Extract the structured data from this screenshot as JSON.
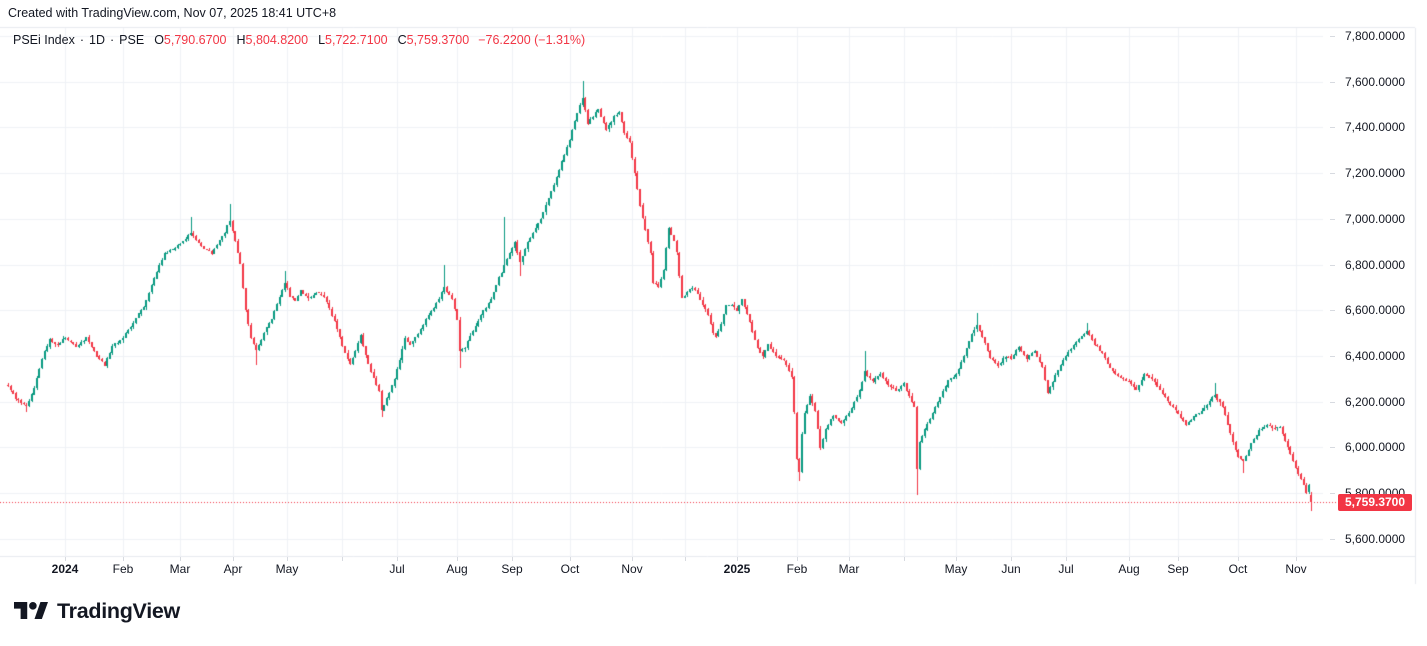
{
  "header": {
    "credit": "Created with TradingView.com, Nov 07, 2025 18:41 UTC+8"
  },
  "legend": {
    "symbol": "PSEi Index",
    "separator": "·",
    "timeframe": "1D",
    "exchange": "PSE",
    "ohlc": [
      {
        "k": "O",
        "v": "5,790.6700"
      },
      {
        "k": "H",
        "v": "5,804.8200"
      },
      {
        "k": "L",
        "v": "5,722.7100"
      },
      {
        "k": "C",
        "v": "5,759.3700"
      }
    ],
    "change": "−76.2200 (−1.31%)"
  },
  "price_axis": {
    "range": [
      5525,
      7835
    ],
    "labels": [
      {
        "value": 7800,
        "text": "7,800.0000"
      },
      {
        "value": 7600,
        "text": "7,600.0000"
      },
      {
        "value": 7400,
        "text": "7,400.0000"
      },
      {
        "value": 7200,
        "text": "7,200.0000"
      },
      {
        "value": 7000,
        "text": "7,000.0000"
      },
      {
        "value": 6800,
        "text": "6,800.0000"
      },
      {
        "value": 6600,
        "text": "6,600.0000"
      },
      {
        "value": 6400,
        "text": "6,400.0000"
      },
      {
        "value": 6200,
        "text": "6,200.0000"
      },
      {
        "value": 6000,
        "text": "6,000.0000"
      },
      {
        "value": 5800,
        "text": "5,800.0000"
      },
      {
        "value": 5600,
        "text": "5,600.0000"
      }
    ]
  },
  "price_line": {
    "value": 5759.37,
    "label": "5,759.3700"
  },
  "time_axis": {
    "ticks": [
      {
        "label": "2024",
        "i": 22,
        "bold": true
      },
      {
        "label": "Feb",
        "i": 44
      },
      {
        "label": "Mar",
        "i": 66
      },
      {
        "label": "Apr",
        "i": 86
      },
      {
        "label": "May",
        "i": 107
      },
      {
        "label": "",
        "i": 128
      },
      {
        "label": "Jul",
        "i": 149
      },
      {
        "label": "Aug",
        "i": 172
      },
      {
        "label": "Sep",
        "i": 193
      },
      {
        "label": "Oct",
        "i": 215
      },
      {
        "label": "Nov",
        "i": 239
      },
      {
        "label": "",
        "i": 259
      },
      {
        "label": "2025",
        "i": 279,
        "bold": true
      },
      {
        "label": "Feb",
        "i": 302
      },
      {
        "label": "Mar",
        "i": 322
      },
      {
        "label": "",
        "i": 343
      },
      {
        "label": "May",
        "i": 363
      },
      {
        "label": "Jun",
        "i": 384
      },
      {
        "label": "Jul",
        "i": 405
      },
      {
        "label": "Aug",
        "i": 429
      },
      {
        "label": "Sep",
        "i": 448
      },
      {
        "label": "Oct",
        "i": 471
      },
      {
        "label": "Nov",
        "i": 493
      }
    ]
  },
  "chart_data": {
    "type": "candlestick",
    "title": "PSEi Index · 1D · PSE",
    "interval": "1D",
    "count": 500,
    "date_range": "Dec 2023 – Nov 07, 2025",
    "ylim": [
      5525,
      7835
    ],
    "grid": true,
    "last_candle": {
      "open": 5790.67,
      "high": 5804.82,
      "low": 5722.71,
      "close": 5759.37
    },
    "prev_close": 5835.59,
    "change": -76.22,
    "change_pct": -1.31,
    "anchors": [
      [
        0,
        6270
      ],
      [
        3,
        6215
      ],
      [
        7,
        6180
      ],
      [
        10,
        6260
      ],
      [
        13,
        6390
      ],
      [
        16,
        6470
      ],
      [
        19,
        6450
      ],
      [
        22,
        6480
      ],
      [
        26,
        6440
      ],
      [
        30,
        6480
      ],
      [
        34,
        6400
      ],
      [
        37,
        6360
      ],
      [
        40,
        6440
      ],
      [
        44,
        6480
      ],
      [
        48,
        6550
      ],
      [
        52,
        6620
      ],
      [
        56,
        6740
      ],
      [
        60,
        6850
      ],
      [
        66,
        6890
      ],
      [
        70,
        6940
      ],
      [
        74,
        6880
      ],
      [
        78,
        6850
      ],
      [
        82,
        6920
      ],
      [
        85,
        6990
      ],
      [
        87,
        6900
      ],
      [
        89,
        6800
      ],
      [
        91,
        6600
      ],
      [
        93,
        6480
      ],
      [
        95,
        6420
      ],
      [
        98,
        6500
      ],
      [
        101,
        6560
      ],
      [
        104,
        6660
      ],
      [
        106,
        6720
      ],
      [
        108,
        6660
      ],
      [
        110,
        6640
      ],
      [
        112,
        6690
      ],
      [
        115,
        6650
      ],
      [
        118,
        6680
      ],
      [
        121,
        6660
      ],
      [
        124,
        6580
      ],
      [
        126,
        6520
      ],
      [
        128,
        6440
      ],
      [
        131,
        6360
      ],
      [
        133,
        6420
      ],
      [
        135,
        6490
      ],
      [
        137,
        6400
      ],
      [
        140,
        6300
      ],
      [
        142,
        6250
      ],
      [
        143,
        6160
      ],
      [
        144,
        6190
      ],
      [
        146,
        6240
      ],
      [
        148,
        6300
      ],
      [
        150,
        6380
      ],
      [
        152,
        6480
      ],
      [
        154,
        6450
      ],
      [
        157,
        6500
      ],
      [
        160,
        6560
      ],
      [
        164,
        6630
      ],
      [
        167,
        6700
      ],
      [
        170,
        6650
      ],
      [
        172,
        6560
      ],
      [
        173,
        6420
      ],
      [
        175,
        6440
      ],
      [
        177,
        6490
      ],
      [
        180,
        6560
      ],
      [
        185,
        6650
      ],
      [
        190,
        6800
      ],
      [
        194,
        6900
      ],
      [
        196,
        6810
      ],
      [
        199,
        6900
      ],
      [
        204,
        7000
      ],
      [
        209,
        7150
      ],
      [
        213,
        7280
      ],
      [
        215,
        7350
      ],
      [
        218,
        7460
      ],
      [
        220,
        7530
      ],
      [
        222,
        7420
      ],
      [
        226,
        7480
      ],
      [
        229,
        7390
      ],
      [
        232,
        7450
      ],
      [
        234,
        7470
      ],
      [
        236,
        7380
      ],
      [
        238,
        7330
      ],
      [
        240,
        7200
      ],
      [
        242,
        7060
      ],
      [
        244,
        6950
      ],
      [
        246,
        6850
      ],
      [
        247,
        6720
      ],
      [
        249,
        6700
      ],
      [
        251,
        6780
      ],
      [
        253,
        6960
      ],
      [
        255,
        6900
      ],
      [
        256,
        6850
      ],
      [
        258,
        6650
      ],
      [
        260,
        6680
      ],
      [
        262,
        6700
      ],
      [
        265,
        6650
      ],
      [
        268,
        6580
      ],
      [
        270,
        6500
      ],
      [
        271,
        6480
      ],
      [
        273,
        6540
      ],
      [
        275,
        6620
      ],
      [
        277,
        6630
      ],
      [
        279,
        6600
      ],
      [
        281,
        6650
      ],
      [
        284,
        6550
      ],
      [
        287,
        6430
      ],
      [
        289,
        6400
      ],
      [
        291,
        6450
      ],
      [
        294,
        6400
      ],
      [
        297,
        6380
      ],
      [
        300,
        6310
      ],
      [
        301,
        6150
      ],
      [
        302,
        5950
      ],
      [
        303,
        5890
      ],
      [
        304,
        6060
      ],
      [
        305,
        6150
      ],
      [
        307,
        6230
      ],
      [
        309,
        6160
      ],
      [
        311,
        6000
      ],
      [
        313,
        6080
      ],
      [
        316,
        6140
      ],
      [
        319,
        6110
      ],
      [
        322,
        6150
      ],
      [
        326,
        6250
      ],
      [
        328,
        6330
      ],
      [
        331,
        6290
      ],
      [
        334,
        6320
      ],
      [
        337,
        6270
      ],
      [
        340,
        6250
      ],
      [
        343,
        6280
      ],
      [
        345,
        6220
      ],
      [
        347,
        6180
      ],
      [
        348,
        5900
      ],
      [
        349,
        6020
      ],
      [
        351,
        6080
      ],
      [
        354,
        6150
      ],
      [
        357,
        6220
      ],
      [
        360,
        6290
      ],
      [
        363,
        6320
      ],
      [
        366,
        6400
      ],
      [
        369,
        6500
      ],
      [
        371,
        6540
      ],
      [
        373,
        6480
      ],
      [
        376,
        6390
      ],
      [
        379,
        6360
      ],
      [
        382,
        6400
      ],
      [
        384,
        6390
      ],
      [
        387,
        6440
      ],
      [
        390,
        6390
      ],
      [
        393,
        6420
      ],
      [
        396,
        6350
      ],
      [
        398,
        6240
      ],
      [
        401,
        6320
      ],
      [
        405,
        6400
      ],
      [
        409,
        6460
      ],
      [
        413,
        6510
      ],
      [
        416,
        6450
      ],
      [
        419,
        6410
      ],
      [
        422,
        6350
      ],
      [
        425,
        6310
      ],
      [
        429,
        6290
      ],
      [
        432,
        6250
      ],
      [
        435,
        6320
      ],
      [
        438,
        6300
      ],
      [
        441,
        6250
      ],
      [
        444,
        6200
      ],
      [
        448,
        6150
      ],
      [
        451,
        6100
      ],
      [
        454,
        6130
      ],
      [
        457,
        6160
      ],
      [
        460,
        6200
      ],
      [
        462,
        6230
      ],
      [
        465,
        6180
      ],
      [
        467,
        6100
      ],
      [
        469,
        6020
      ],
      [
        471,
        5960
      ],
      [
        473,
        5940
      ],
      [
        476,
        6020
      ],
      [
        479,
        6070
      ],
      [
        482,
        6100
      ],
      [
        485,
        6080
      ],
      [
        487,
        6090
      ],
      [
        489,
        6030
      ],
      [
        491,
        5970
      ],
      [
        493,
        5910
      ],
      [
        495,
        5860
      ],
      [
        497,
        5800
      ],
      [
        498,
        5835.59
      ],
      [
        499,
        5759.37
      ]
    ],
    "wick_overrides": [
      {
        "i": 7,
        "low": 6155
      },
      {
        "i": 70,
        "high": 7010
      },
      {
        "i": 85,
        "high": 7065
      },
      {
        "i": 95,
        "low": 6360
      },
      {
        "i": 106,
        "high": 6770
      },
      {
        "i": 143,
        "low": 6135
      },
      {
        "i": 167,
        "high": 6800
      },
      {
        "i": 173,
        "low": 6347
      },
      {
        "i": 190,
        "high": 7010
      },
      {
        "i": 196,
        "low": 6750
      },
      {
        "i": 220,
        "high": 7604
      },
      {
        "i": 303,
        "low": 5855
      },
      {
        "i": 328,
        "high": 6420
      },
      {
        "i": 348,
        "low": 5792
      },
      {
        "i": 371,
        "high": 6590
      },
      {
        "i": 413,
        "high": 6545
      },
      {
        "i": 462,
        "high": 6280
      },
      {
        "i": 473,
        "low": 5890
      },
      {
        "i": 498,
        "open": 5806,
        "high": 5842
      }
    ]
  },
  "colors": {
    "up": "#089981",
    "down": "#f23645",
    "grid": "#f0f2f6",
    "border": "#e7eaf0",
    "text": "#131722",
    "red": "#f23645",
    "badge_bg": "#f23645",
    "badge_text": "#ffffff"
  },
  "logo": {
    "text": "TradingView"
  }
}
